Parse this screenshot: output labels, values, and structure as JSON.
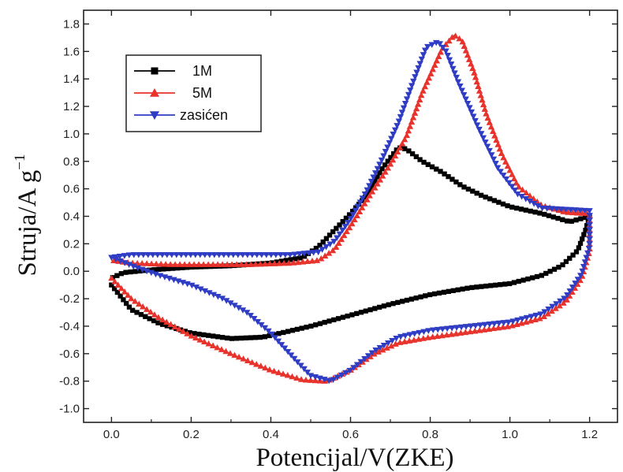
{
  "chart_data": {
    "type": "line",
    "xlabel": "Potencijal/V(ZKE)",
    "ylabel_main": "Struja/A g",
    "ylabel_superscript": "−1",
    "xlim": [
      -0.07,
      1.27
    ],
    "ylim": [
      -1.1,
      1.9
    ],
    "xticks": [
      0.0,
      0.2,
      0.4,
      0.6,
      0.8,
      1.0,
      1.2
    ],
    "xtick_labels": [
      "0.0",
      "0.2",
      "0.4",
      "0.6",
      "0.8",
      "1.0",
      "1.2"
    ],
    "yticks": [
      -1.0,
      -0.8,
      -0.6,
      -0.4,
      -0.2,
      0.0,
      0.2,
      0.4,
      0.6,
      0.8,
      1.0,
      1.2,
      1.4,
      1.6,
      1.8
    ],
    "ytick_labels": [
      "-1.0",
      "-0.8",
      "-0.6",
      "-0.4",
      "-0.2",
      "0.0",
      "0.2",
      "0.4",
      "0.6",
      "0.8",
      "1.0",
      "1.2",
      "1.4",
      "1.6",
      "1.8"
    ],
    "legend_position": "top-left",
    "series": [
      {
        "name": "1M",
        "color": "#000000",
        "marker": "square",
        "points": [
          [
            0.0,
            -0.1
          ],
          [
            0.05,
            -0.28
          ],
          [
            0.12,
            -0.38
          ],
          [
            0.2,
            -0.45
          ],
          [
            0.3,
            -0.49
          ],
          [
            0.38,
            -0.48
          ],
          [
            0.5,
            -0.4
          ],
          [
            0.6,
            -0.32
          ],
          [
            0.7,
            -0.24
          ],
          [
            0.8,
            -0.17
          ],
          [
            0.9,
            -0.12
          ],
          [
            1.0,
            -0.09
          ],
          [
            1.08,
            -0.03
          ],
          [
            1.13,
            0.04
          ],
          [
            1.17,
            0.15
          ],
          [
            1.19,
            0.3
          ],
          [
            1.2,
            0.4
          ],
          [
            1.15,
            0.36
          ],
          [
            1.08,
            0.42
          ],
          [
            1.0,
            0.47
          ],
          [
            0.93,
            0.55
          ],
          [
            0.88,
            0.62
          ],
          [
            0.83,
            0.72
          ],
          [
            0.78,
            0.8
          ],
          [
            0.74,
            0.89
          ],
          [
            0.72,
            0.9
          ],
          [
            0.68,
            0.75
          ],
          [
            0.64,
            0.55
          ],
          [
            0.6,
            0.42
          ],
          [
            0.56,
            0.3
          ],
          [
            0.52,
            0.18
          ],
          [
            0.48,
            0.1
          ],
          [
            0.4,
            0.06
          ],
          [
            0.3,
            0.04
          ],
          [
            0.2,
            0.03
          ],
          [
            0.1,
            0.01
          ],
          [
            0.03,
            -0.01
          ],
          [
            0.0,
            -0.05
          ]
        ]
      },
      {
        "name": "5M",
        "color": "#e8322c",
        "marker": "triangle-up",
        "points": [
          [
            0.0,
            -0.05
          ],
          [
            0.05,
            -0.2
          ],
          [
            0.12,
            -0.34
          ],
          [
            0.2,
            -0.47
          ],
          [
            0.3,
            -0.6
          ],
          [
            0.4,
            -0.72
          ],
          [
            0.48,
            -0.79
          ],
          [
            0.54,
            -0.8
          ],
          [
            0.6,
            -0.72
          ],
          [
            0.66,
            -0.6
          ],
          [
            0.72,
            -0.52
          ],
          [
            0.8,
            -0.48
          ],
          [
            0.9,
            -0.44
          ],
          [
            1.0,
            -0.4
          ],
          [
            1.08,
            -0.34
          ],
          [
            1.14,
            -0.22
          ],
          [
            1.18,
            -0.05
          ],
          [
            1.2,
            0.15
          ],
          [
            1.2,
            0.42
          ],
          [
            1.14,
            0.43
          ],
          [
            1.08,
            0.48
          ],
          [
            1.02,
            0.62
          ],
          [
            0.98,
            0.85
          ],
          [
            0.94,
            1.15
          ],
          [
            0.91,
            1.45
          ],
          [
            0.88,
            1.68
          ],
          [
            0.86,
            1.72
          ],
          [
            0.83,
            1.62
          ],
          [
            0.78,
            1.3
          ],
          [
            0.74,
            0.98
          ],
          [
            0.7,
            0.78
          ],
          [
            0.65,
            0.56
          ],
          [
            0.6,
            0.33
          ],
          [
            0.56,
            0.16
          ],
          [
            0.52,
            0.08
          ],
          [
            0.45,
            0.06
          ],
          [
            0.35,
            0.05
          ],
          [
            0.25,
            0.05
          ],
          [
            0.15,
            0.05
          ],
          [
            0.05,
            0.06
          ],
          [
            0.0,
            0.08
          ]
        ]
      },
      {
        "name": "zasićen",
        "color": "#2f3cc4",
        "marker": "triangle-down",
        "points": [
          [
            0.0,
            0.1
          ],
          [
            0.06,
            0.03
          ],
          [
            0.12,
            -0.03
          ],
          [
            0.2,
            -0.1
          ],
          [
            0.28,
            -0.2
          ],
          [
            0.34,
            -0.3
          ],
          [
            0.4,
            -0.45
          ],
          [
            0.46,
            -0.64
          ],
          [
            0.5,
            -0.76
          ],
          [
            0.55,
            -0.8
          ],
          [
            0.6,
            -0.72
          ],
          [
            0.66,
            -0.58
          ],
          [
            0.72,
            -0.48
          ],
          [
            0.8,
            -0.43
          ],
          [
            0.9,
            -0.4
          ],
          [
            1.0,
            -0.37
          ],
          [
            1.08,
            -0.31
          ],
          [
            1.14,
            -0.19
          ],
          [
            1.18,
            -0.02
          ],
          [
            1.2,
            0.18
          ],
          [
            1.2,
            0.44
          ],
          [
            1.14,
            0.45
          ],
          [
            1.08,
            0.46
          ],
          [
            1.02,
            0.56
          ],
          [
            0.97,
            0.75
          ],
          [
            0.92,
            1.05
          ],
          [
            0.87,
            1.38
          ],
          [
            0.84,
            1.6
          ],
          [
            0.82,
            1.67
          ],
          [
            0.79,
            1.63
          ],
          [
            0.76,
            1.4
          ],
          [
            0.72,
            1.08
          ],
          [
            0.68,
            0.82
          ],
          [
            0.64,
            0.58
          ],
          [
            0.6,
            0.38
          ],
          [
            0.56,
            0.22
          ],
          [
            0.52,
            0.14
          ],
          [
            0.45,
            0.12
          ],
          [
            0.35,
            0.12
          ],
          [
            0.25,
            0.12
          ],
          [
            0.15,
            0.12
          ],
          [
            0.05,
            0.12
          ],
          [
            0.0,
            0.1
          ]
        ]
      }
    ]
  }
}
